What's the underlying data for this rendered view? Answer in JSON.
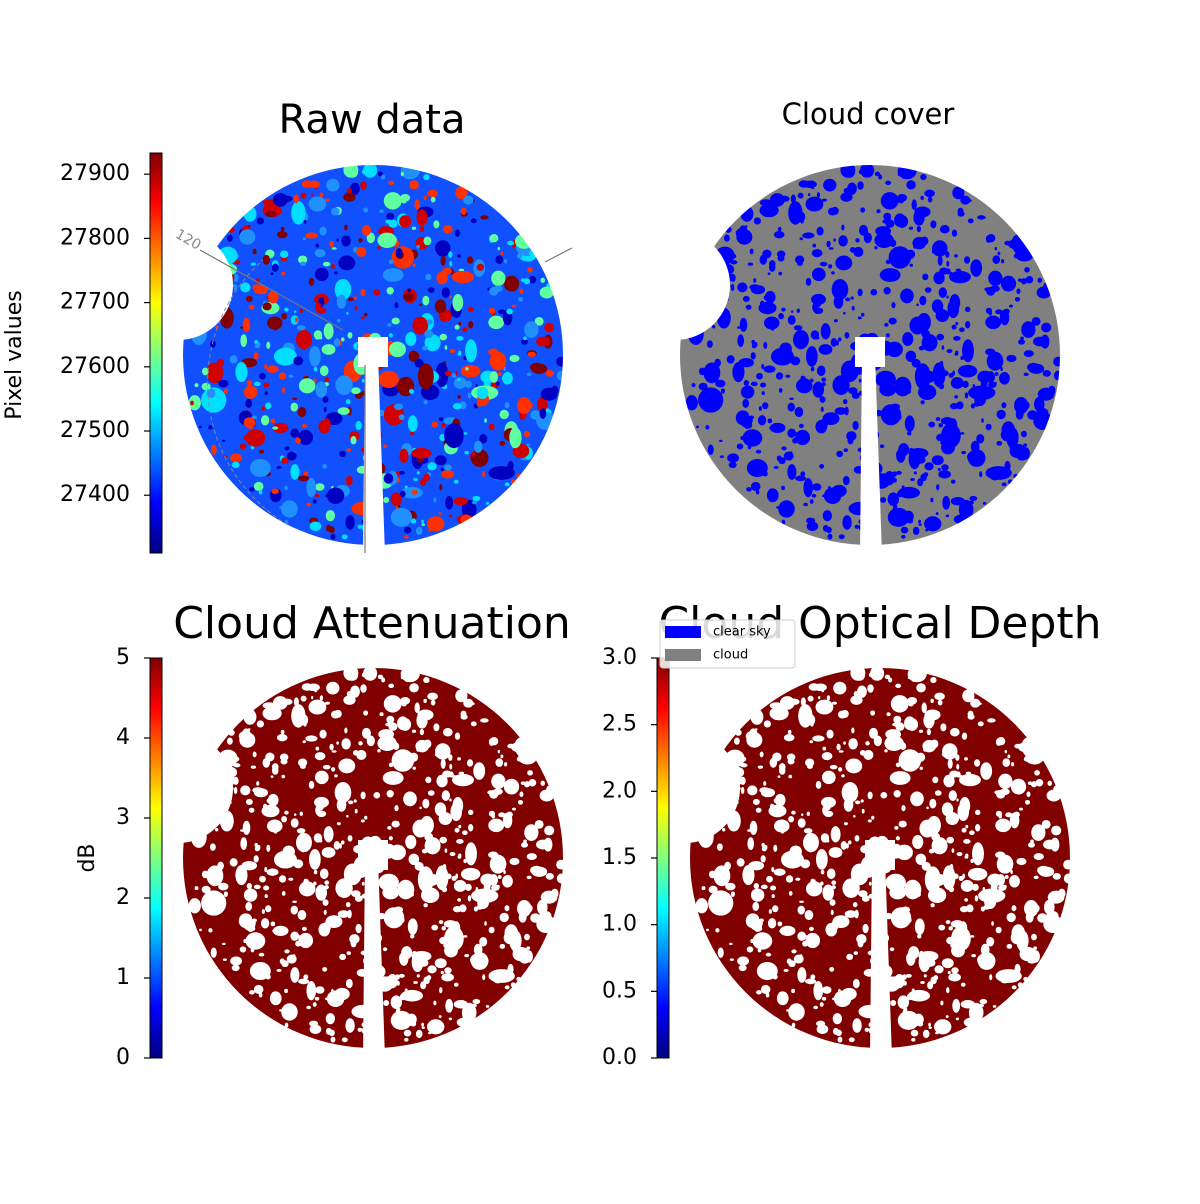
{
  "chart_data": [
    {
      "type": "image",
      "title": "Raw data",
      "colormap": "jet",
      "colorbar_label": "Pixel values",
      "ylim": [
        27310,
        27933
      ],
      "yticks": [
        27400,
        27500,
        27600,
        27700,
        27800,
        27900
      ],
      "annotations": [
        "120"
      ]
    },
    {
      "type": "image",
      "title": "Cloud cover",
      "colormap": "categorical",
      "series": [
        {
          "name": "clear sky",
          "color": "#0000ff"
        },
        {
          "name": "cloud",
          "color": "#808080"
        }
      ],
      "legend": "lower left"
    },
    {
      "type": "image",
      "title": "Cloud Attenuation",
      "colormap": "jet",
      "colorbar_label": "dB",
      "color": "#800000",
      "ylim": [
        0,
        5
      ],
      "yticks": [
        0,
        1,
        2,
        3,
        4,
        5
      ]
    },
    {
      "type": "image",
      "title": "Cloud Optical Depth",
      "colormap": "jet",
      "color": "#800000",
      "ylim": [
        0,
        3
      ],
      "yticks": [
        {
          "value": 0,
          "label": "0.0"
        },
        {
          "value": 0.5,
          "label": "0.5"
        },
        {
          "value": 1,
          "label": "1.0"
        },
        {
          "value": 1.5,
          "label": "1.5"
        },
        {
          "value": 2,
          "label": "2.0"
        },
        {
          "value": 2.5,
          "label": "2.5"
        },
        {
          "value": 3,
          "label": "3.0"
        }
      ]
    }
  ]
}
